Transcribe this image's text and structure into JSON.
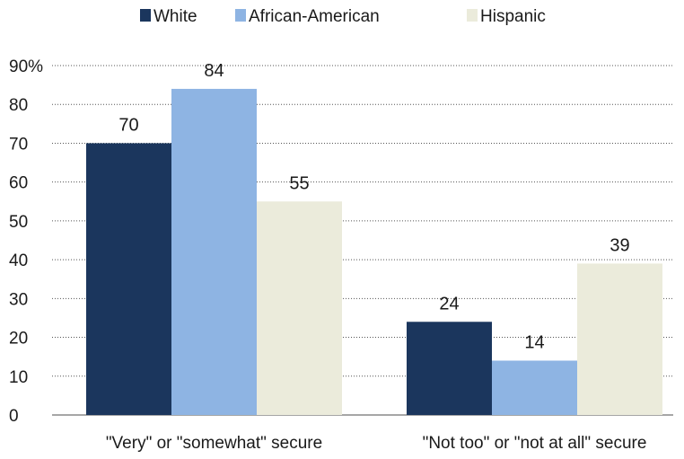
{
  "chart_data": {
    "type": "bar",
    "categories": [
      "\"Very\" or \"somewhat\" secure",
      "\"Not too\" or \"not at all\" secure"
    ],
    "series": [
      {
        "name": "White",
        "color": "#1b365d",
        "values": [
          70,
          24
        ]
      },
      {
        "name": "African-American",
        "color": "#8eb4e3",
        "values": [
          84,
          14
        ]
      },
      {
        "name": "Hispanic",
        "color": "#ebebdb",
        "values": [
          55,
          39
        ]
      }
    ],
    "y_ticks": [
      "0",
      "10",
      "20",
      "30",
      "40",
      "50",
      "60",
      "70",
      "80",
      "90%"
    ],
    "ylim": [
      0,
      90
    ],
    "grid": "dotted horizontal",
    "legend_position": "top-center",
    "data_labels": true
  }
}
